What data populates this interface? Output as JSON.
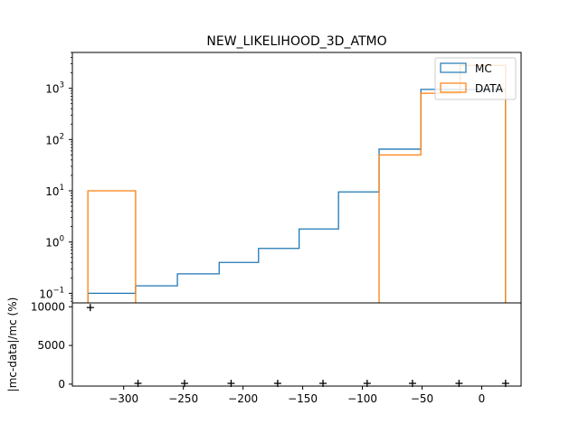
{
  "chart_data": [
    {
      "type": "line",
      "title": "NEW_LIKELIHOOD_3D_ATMO",
      "xlabel": "",
      "ylabel": "",
      "yscale": "log",
      "legend": "top-right",
      "grid": false,
      "bin_edges": [
        -330,
        -290,
        -255,
        -220,
        -187,
        -153,
        -120,
        -86,
        -51,
        -18,
        20
      ],
      "series": [
        {
          "name": "MC",
          "color": "#1f77b4",
          "values": [
            0.1,
            0.14,
            0.24,
            0.4,
            0.75,
            1.8,
            9.5,
            65,
            950,
            950
          ]
        },
        {
          "name": "DATA",
          "color": "#ff7f0e",
          "values": [
            10,
            0,
            0,
            0,
            0,
            0,
            0,
            50,
            800,
            2800
          ]
        }
      ],
      "y_ticks": [
        {
          "label": "10",
          "exp": "3",
          "value": 1000
        },
        {
          "label": "10",
          "exp": "2",
          "value": 100
        },
        {
          "label": "10",
          "exp": "1",
          "value": 10
        },
        {
          "label": "10",
          "exp": "0",
          "value": 1
        },
        {
          "label": "10",
          "exp": "−1",
          "value": 0.1
        }
      ],
      "ylim": [
        0.065,
        5000
      ]
    },
    {
      "type": "scatter",
      "ylabel": "|mc-data|/mc (%)",
      "xlim": [
        -343,
        33
      ],
      "ylim": [
        -250,
        10500
      ],
      "x": [
        -328,
        -288,
        -249,
        -210,
        -171,
        -133,
        -96,
        -58,
        -19,
        20
      ],
      "y": [
        9900,
        99,
        99,
        99,
        99,
        99,
        99,
        99,
        99,
        99
      ],
      "marker": "+",
      "x_ticks": [
        {
          "label": "−300",
          "value": -300
        },
        {
          "label": "−250",
          "value": -250
        },
        {
          "label": "−200",
          "value": -200
        },
        {
          "label": "−150",
          "value": -150
        },
        {
          "label": "−100",
          "value": -100
        },
        {
          "label": "−50",
          "value": -50
        },
        {
          "label": "0",
          "value": 0
        }
      ],
      "y_ticks": [
        {
          "label": "10000",
          "value": 10000
        },
        {
          "label": "5000",
          "value": 5000
        },
        {
          "label": "0",
          "value": 0
        }
      ]
    }
  ]
}
